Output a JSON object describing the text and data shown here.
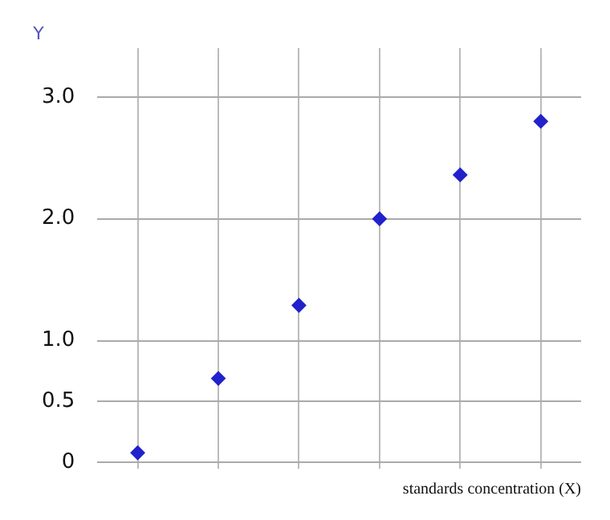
{
  "chart_data": {
    "type": "scatter",
    "xlabel": "standards concentration (X)",
    "ylabel": "Y",
    "categories": [
      null,
      null,
      null,
      null,
      null,
      null
    ],
    "series": [
      {
        "color": "#2222cc",
        "values": [
          0.08,
          0.69,
          1.29,
          2.0,
          2.36,
          2.8
        ]
      }
    ],
    "ylim": [
      -0.05,
      3.4
    ],
    "yticks": [
      {
        "value": 0,
        "label": "0"
      },
      0.5,
      {
        "value": 1,
        "label": "1.0"
      },
      {
        "value": 2,
        "label": "2.0"
      },
      {
        "value": 3,
        "label": "3.0"
      }
    ],
    "grid": true,
    "marker": "diamond",
    "legend": false
  }
}
